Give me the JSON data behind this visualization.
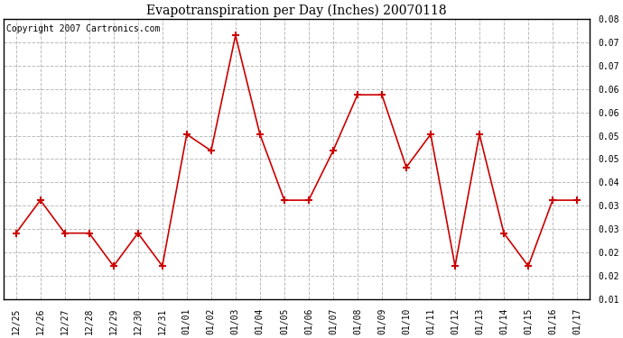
{
  "title": "Evapotranspiration per Day (Inches) 20070118",
  "copyright_text": "Copyright 2007 Cartronics.com",
  "x_labels": [
    "12/25",
    "12/26",
    "12/27",
    "12/28",
    "12/29",
    "12/30",
    "12/31",
    "01/01",
    "01/02",
    "01/03",
    "01/04",
    "01/05",
    "01/06",
    "01/07",
    "01/08",
    "01/09",
    "01/10",
    "01/11",
    "01/12",
    "01/13",
    "01/14",
    "01/15",
    "01/16",
    "01/17"
  ],
  "y_values": [
    0.02,
    0.03,
    0.02,
    0.02,
    0.01,
    0.02,
    0.01,
    0.05,
    0.045,
    0.08,
    0.05,
    0.03,
    0.03,
    0.045,
    0.062,
    0.062,
    0.04,
    0.05,
    0.01,
    0.05,
    0.02,
    0.01,
    0.03,
    0.03
  ],
  "line_color": "#cc0000",
  "marker": "+",
  "marker_size": 6,
  "marker_edge_width": 1.5,
  "line_width": 1.2,
  "bg_color": "#ffffff",
  "plot_bg_color": "#ffffff",
  "grid_color": "#bbbbbb",
  "grid_style": "--",
  "ylim_data_min": 0.0,
  "ylim_data_max": 0.085,
  "ytick_labels": [
    "0.08",
    "0.07",
    "0.07",
    "0.06",
    "0.06",
    "0.05",
    "0.05",
    "0.04",
    "0.03",
    "0.03",
    "0.02",
    "0.02",
    "0.01"
  ],
  "title_fontsize": 10,
  "tick_fontsize": 7,
  "copyright_fontsize": 7
}
